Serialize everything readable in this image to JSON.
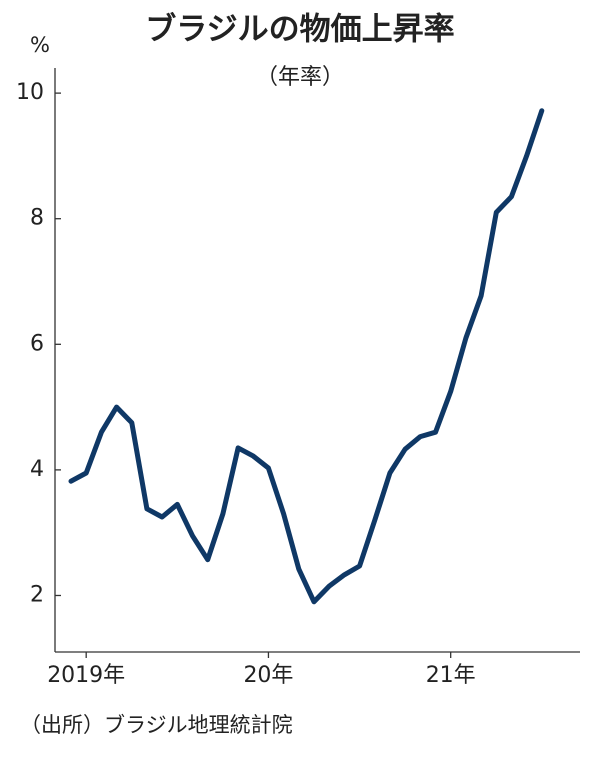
{
  "chart_data": {
    "type": "line",
    "title": "ブラジルの物価上昇率",
    "subtitle": "（年率）",
    "y_unit": "%",
    "source": "（出所）ブラジル地理統計院",
    "categories": [
      null,
      "2019年",
      null,
      null,
      null,
      null,
      null,
      null,
      null,
      null,
      null,
      null,
      null,
      "20年",
      null,
      null,
      null,
      null,
      null,
      null,
      null,
      null,
      null,
      null,
      null,
      "21年",
      null,
      null,
      null,
      null,
      null,
      null,
      null
    ],
    "series": [
      {
        "name": "物価上昇率",
        "color": "#0f3866",
        "values": [
          3.82,
          3.95,
          4.6,
          5.0,
          4.75,
          3.38,
          3.25,
          3.45,
          2.95,
          2.57,
          3.3,
          4.35,
          4.22,
          4.03,
          3.3,
          2.42,
          1.9,
          2.15,
          2.33,
          2.47,
          3.2,
          3.95,
          4.33,
          4.53,
          4.6,
          5.25,
          6.1,
          6.77,
          8.1,
          8.35,
          9.0,
          9.72,
          null
        ]
      }
    ],
    "ylim": [
      1.1,
      10.4
    ],
    "yticks": [
      2,
      4,
      6,
      8,
      10
    ]
  }
}
